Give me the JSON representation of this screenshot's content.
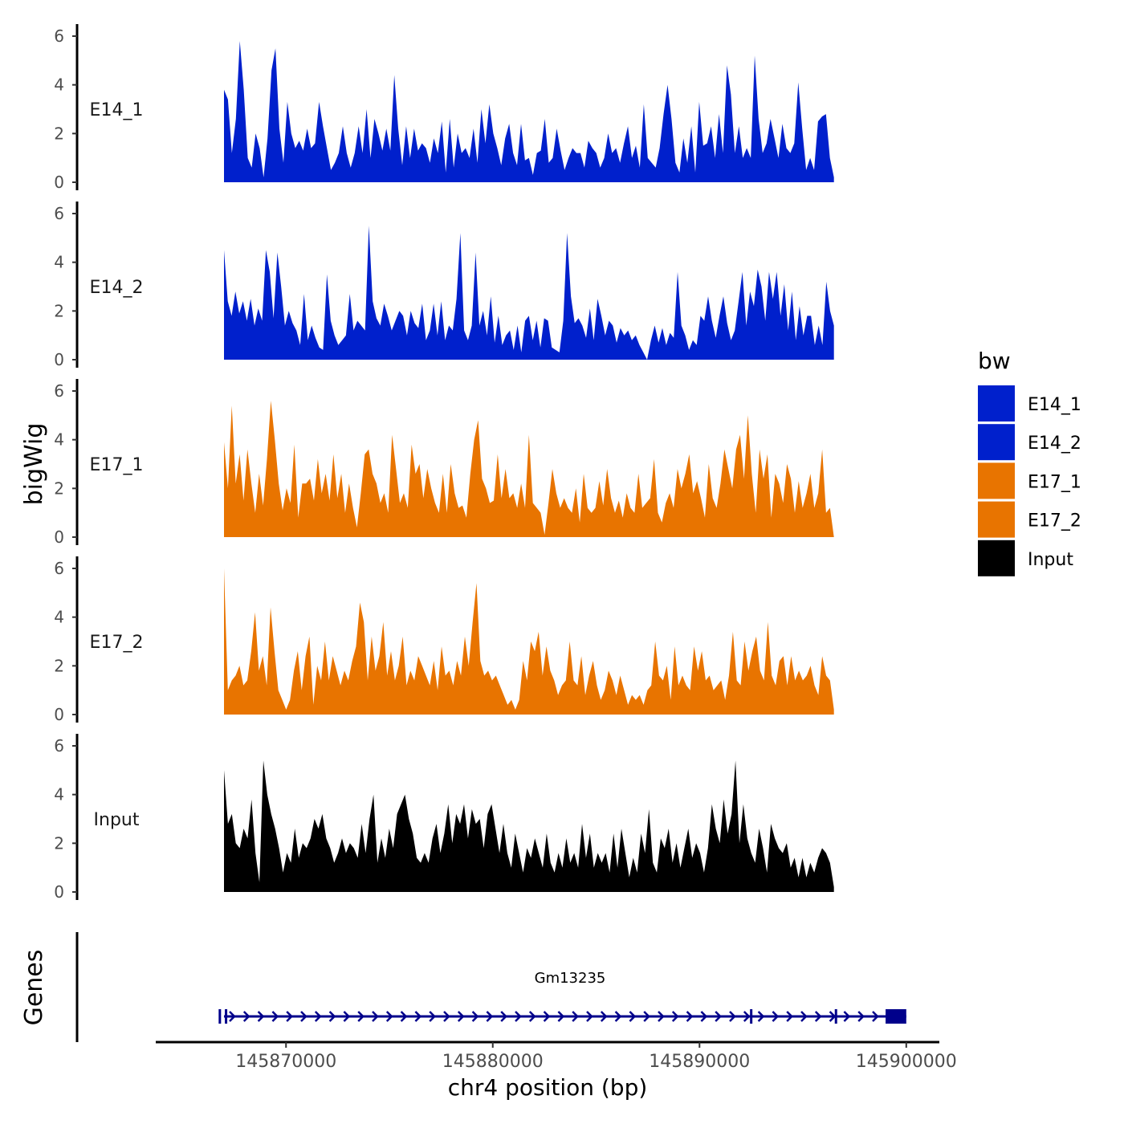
{
  "chart_data": {
    "type": "area",
    "ylabel": "bigWig",
    "xlabel": "chr4 position (bp)",
    "genes_label": "Genes",
    "legend_title": "bw",
    "legend_position": "right",
    "grid": false,
    "ylim": [
      0,
      6
    ],
    "yticks": [
      0,
      2,
      4,
      6
    ],
    "xlim": [
      145863700,
      145901600
    ],
    "xticks": [
      145870000,
      145880000,
      145890000,
      145900000
    ],
    "xtick_labels": [
      "145870000",
      "145880000",
      "145890000",
      "145900000"
    ],
    "track_x_range": [
      145867000,
      145896500
    ],
    "series": [
      {
        "name": "E14_1",
        "color": "#0020CC",
        "values": [
          3.8,
          3.4,
          1.2,
          2.6,
          5.8,
          3.8,
          1.0,
          0.6,
          2.0,
          1.4,
          0.2,
          1.8,
          4.6,
          5.5,
          2.2,
          0.8,
          3.3,
          2.0,
          1.4,
          1.7,
          1.3,
          2.2,
          1.4,
          1.6,
          3.3,
          2.3,
          1.4,
          0.5,
          0.8,
          1.2,
          2.3,
          1.2,
          0.6,
          1.2,
          2.3,
          1.2,
          3.0,
          1.0,
          2.6,
          2.0,
          1.3,
          2.2,
          1.3,
          4.4,
          2.2,
          0.7,
          2.3,
          1.0,
          2.2,
          1.3,
          1.6,
          1.4,
          0.8,
          1.8,
          1.2,
          2.5,
          0.4,
          2.6,
          0.6,
          2.0,
          1.2,
          1.4,
          1.0,
          2.2,
          0.8,
          3.0,
          1.6,
          3.2,
          2.0,
          1.4,
          0.7,
          1.8,
          2.4,
          1.2,
          0.7,
          2.4,
          0.9,
          1.0,
          0.3,
          1.2,
          1.3,
          2.6,
          0.8,
          1.0,
          2.2,
          1.3,
          0.5,
          1.0,
          1.4,
          1.2,
          1.2,
          0.6,
          1.7,
          1.4,
          1.2,
          0.6,
          1.0,
          2.0,
          1.2,
          1.4,
          0.8,
          1.6,
          2.3,
          1.0,
          1.5,
          0.6,
          3.2,
          1.0,
          0.8,
          0.6,
          1.4,
          2.8,
          4.0,
          2.6,
          0.8,
          0.4,
          1.8,
          0.8,
          2.3,
          0.4,
          3.3,
          1.5,
          1.6,
          2.3,
          1.0,
          2.8,
          1.2,
          4.8,
          3.6,
          1.2,
          2.3,
          1.0,
          1.4,
          1.0,
          5.2,
          2.6,
          1.2,
          1.6,
          2.6,
          1.8,
          1.0,
          2.4,
          1.4,
          1.2,
          1.6,
          4.1,
          2.2,
          0.5,
          1.0,
          0.5,
          2.5,
          2.7,
          2.8,
          1.0,
          0.2
        ]
      },
      {
        "name": "E14_2",
        "color": "#0020CC",
        "values": [
          4.5,
          2.4,
          1.8,
          2.8,
          1.9,
          2.4,
          1.6,
          2.5,
          1.4,
          2.1,
          1.6,
          4.5,
          3.6,
          1.7,
          4.4,
          3.0,
          1.4,
          2.0,
          1.5,
          1.2,
          0.6,
          2.7,
          0.8,
          1.4,
          0.9,
          0.5,
          0.4,
          3.5,
          1.6,
          1.0,
          0.6,
          0.8,
          1.0,
          2.7,
          1.2,
          1.6,
          1.4,
          1.2,
          5.5,
          2.4,
          1.7,
          1.4,
          2.3,
          1.8,
          1.2,
          1.6,
          2.0,
          1.8,
          1.0,
          2.0,
          1.5,
          1.3,
          2.3,
          0.8,
          1.2,
          2.3,
          1.0,
          2.4,
          0.8,
          1.4,
          1.2,
          2.5,
          5.2,
          1.2,
          0.8,
          1.4,
          4.4,
          1.4,
          2.0,
          1.0,
          2.6,
          0.7,
          1.8,
          0.6,
          1.0,
          1.2,
          0.4,
          1.4,
          0.3,
          1.6,
          1.8,
          0.8,
          1.6,
          0.5,
          1.7,
          1.6,
          0.5,
          0.4,
          0.3,
          1.6,
          5.2,
          2.6,
          1.5,
          1.7,
          1.4,
          0.9,
          2.1,
          0.8,
          2.5,
          1.8,
          1.0,
          1.6,
          1.4,
          0.7,
          1.3,
          1.0,
          1.2,
          0.8,
          1.0,
          0.6,
          0.3,
          0.0,
          0.8,
          1.4,
          0.7,
          1.3,
          0.6,
          1.1,
          0.9,
          3.6,
          1.4,
          1.0,
          0.4,
          0.8,
          0.6,
          1.8,
          1.6,
          2.6,
          1.6,
          0.9,
          1.8,
          2.6,
          1.5,
          0.8,
          1.2,
          2.4,
          3.6,
          1.4,
          2.8,
          2.2,
          3.7,
          3.0,
          1.6,
          3.6,
          2.5,
          3.6,
          1.8,
          3.1,
          1.2,
          2.8,
          0.8,
          2.2,
          1.0,
          1.8,
          1.8,
          0.6,
          1.4,
          0.6,
          3.2,
          2.0,
          1.4
        ]
      },
      {
        "name": "E17_1",
        "color": "#E87400",
        "values": [
          3.9,
          2.0,
          5.4,
          2.2,
          3.4,
          1.5,
          3.6,
          2.2,
          1.0,
          2.6,
          1.3,
          3.2,
          5.6,
          4.0,
          2.2,
          1.1,
          2.0,
          1.4,
          3.8,
          0.8,
          2.2,
          2.2,
          2.4,
          1.5,
          3.2,
          1.8,
          2.6,
          1.5,
          3.4,
          1.6,
          2.6,
          1.0,
          2.2,
          1.2,
          0.4,
          1.8,
          3.4,
          3.6,
          2.6,
          2.2,
          1.4,
          1.8,
          1.0,
          4.2,
          2.8,
          1.4,
          1.8,
          1.2,
          3.8,
          2.6,
          3.0,
          1.6,
          2.8,
          2.0,
          1.4,
          1.0,
          2.6,
          1.0,
          3.0,
          1.8,
          1.2,
          1.3,
          0.8,
          2.6,
          4.0,
          4.8,
          2.4,
          2.0,
          1.4,
          1.5,
          3.4,
          1.6,
          2.8,
          1.6,
          1.8,
          1.2,
          2.2,
          1.2,
          4.2,
          1.4,
          1.2,
          1.0,
          0.1,
          1.4,
          2.8,
          1.8,
          1.2,
          1.6,
          1.2,
          1.0,
          2.0,
          0.6,
          2.6,
          1.2,
          1.0,
          1.2,
          2.3,
          1.3,
          2.8,
          1.6,
          1.0,
          1.5,
          0.8,
          1.8,
          1.2,
          1.0,
          2.6,
          1.2,
          1.4,
          1.6,
          3.2,
          1.0,
          0.6,
          1.4,
          1.8,
          1.2,
          2.8,
          2.0,
          2.6,
          3.4,
          1.8,
          2.3,
          1.6,
          0.8,
          3.0,
          1.6,
          1.2,
          2.2,
          3.6,
          2.8,
          2.0,
          3.6,
          4.2,
          2.4,
          5.0,
          2.6,
          1.0,
          3.6,
          2.4,
          3.4,
          0.8,
          2.6,
          2.2,
          1.4,
          3.0,
          2.4,
          1.0,
          2.3,
          1.2,
          1.8,
          2.6,
          1.2,
          1.8,
          3.6,
          1.0,
          1.2,
          0.0
        ]
      },
      {
        "name": "E17_2",
        "color": "#E87400",
        "values": [
          6.0,
          1.0,
          1.4,
          1.6,
          2.0,
          1.2,
          1.4,
          2.6,
          4.2,
          1.8,
          2.4,
          1.2,
          4.4,
          2.6,
          1.0,
          0.6,
          0.2,
          0.6,
          1.8,
          2.6,
          1.0,
          2.4,
          3.2,
          0.4,
          2.0,
          1.4,
          3.0,
          1.4,
          2.4,
          1.8,
          1.2,
          1.8,
          1.4,
          2.2,
          2.8,
          4.6,
          3.8,
          1.4,
          3.2,
          1.8,
          2.4,
          3.8,
          1.6,
          2.6,
          1.4,
          2.0,
          3.2,
          1.2,
          1.8,
          1.4,
          2.4,
          2.0,
          1.6,
          1.2,
          2.2,
          1.0,
          2.8,
          1.6,
          1.8,
          1.2,
          2.2,
          1.6,
          3.2,
          2.0,
          3.8,
          5.4,
          2.2,
          1.6,
          1.8,
          1.4,
          1.6,
          1.2,
          0.8,
          0.4,
          0.6,
          0.2,
          0.6,
          2.2,
          1.4,
          3.0,
          2.6,
          3.4,
          1.6,
          2.8,
          1.8,
          1.4,
          0.8,
          1.2,
          1.4,
          3.0,
          1.4,
          1.2,
          2.4,
          0.8,
          1.6,
          2.2,
          1.2,
          0.6,
          1.0,
          1.8,
          1.4,
          0.8,
          1.6,
          1.0,
          0.4,
          0.8,
          0.6,
          0.8,
          0.4,
          1.0,
          1.2,
          3.0,
          1.6,
          1.4,
          2.0,
          0.6,
          2.8,
          1.2,
          1.6,
          1.2,
          1.0,
          2.8,
          1.8,
          2.6,
          1.4,
          1.6,
          1.0,
          1.2,
          1.4,
          0.6,
          1.6,
          3.4,
          1.4,
          1.2,
          3.0,
          1.8,
          2.6,
          3.2,
          1.8,
          1.4,
          3.8,
          1.6,
          1.2,
          2.2,
          2.4,
          1.2,
          2.4,
          1.4,
          1.8,
          1.4,
          1.6,
          2.0,
          1.2,
          0.8,
          2.4,
          1.6,
          1.4,
          0.2
        ]
      },
      {
        "name": "Input",
        "color": "#000000",
        "values": [
          5.0,
          2.8,
          3.2,
          2.0,
          1.8,
          2.6,
          2.2,
          3.8,
          1.6,
          0.4,
          5.4,
          4.0,
          3.2,
          2.6,
          1.8,
          0.8,
          1.6,
          1.2,
          2.6,
          1.4,
          2.0,
          1.8,
          2.2,
          3.0,
          2.6,
          3.2,
          2.2,
          1.8,
          1.2,
          1.6,
          2.2,
          1.6,
          2.0,
          1.8,
          1.4,
          2.8,
          1.6,
          3.0,
          4.0,
          1.2,
          2.2,
          1.4,
          2.6,
          1.8,
          3.2,
          3.6,
          4.0,
          3.0,
          2.4,
          1.4,
          1.2,
          1.6,
          1.2,
          2.2,
          2.8,
          1.6,
          2.4,
          3.6,
          2.0,
          3.2,
          2.8,
          3.6,
          2.2,
          3.4,
          2.8,
          3.0,
          1.8,
          3.2,
          3.6,
          2.6,
          1.6,
          2.8,
          1.6,
          1.0,
          2.4,
          1.6,
          0.8,
          1.8,
          1.4,
          2.2,
          1.6,
          1.0,
          2.4,
          1.2,
          0.8,
          1.6,
          1.0,
          2.2,
          1.2,
          1.6,
          1.0,
          2.8,
          1.4,
          2.4,
          1.0,
          1.6,
          1.2,
          1.6,
          0.8,
          2.4,
          1.0,
          2.6,
          1.6,
          0.6,
          1.4,
          0.8,
          2.4,
          1.6,
          3.4,
          1.2,
          0.8,
          2.2,
          1.8,
          2.6,
          1.2,
          2.0,
          1.0,
          1.8,
          2.6,
          1.4,
          2.0,
          1.6,
          0.8,
          1.8,
          3.6,
          2.6,
          2.0,
          3.8,
          2.4,
          3.2,
          5.4,
          2.0,
          3.6,
          2.2,
          1.6,
          1.2,
          2.6,
          1.8,
          0.8,
          2.8,
          2.2,
          1.8,
          1.6,
          2.0,
          1.0,
          1.4,
          0.6,
          1.4,
          0.6,
          1.2,
          0.8,
          1.4,
          1.8,
          1.6,
          1.2,
          0.2
        ]
      }
    ],
    "gene_track": {
      "gene_name": "Gm13235",
      "strand": "+",
      "line_start": 145867000,
      "line_end": 145900000,
      "boundaries": [
        145866800,
        145867100,
        145892500,
        145896600
      ],
      "exon_start": 145899000,
      "exon_end": 145900000,
      "color": "#00008B"
    }
  }
}
